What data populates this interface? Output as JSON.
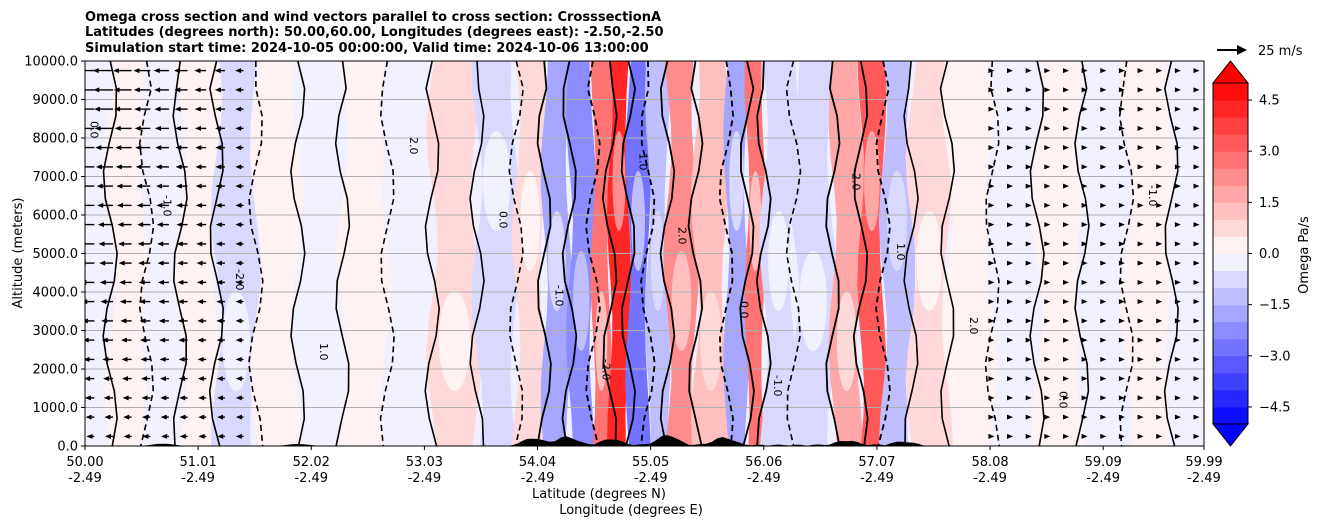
{
  "chart_data": {
    "type": "contourf_crosssection",
    "title_lines": [
      "Omega cross section and wind vectors parallel to cross section: CrosssectionA",
      "Latitudes (degrees north): 50.00,60.00, Longitudes (degrees east): -2.50,-2.50",
      "Simulation start time: 2024-10-05 00:00:00, Valid time: 2024-10-06 13:00:00"
    ],
    "ylabel": "Altitude (meters)",
    "xlabel_lines": [
      "Latitude (degrees N)",
      "Longitude (degrees E)"
    ],
    "ylim": [
      0,
      10000
    ],
    "y_ticks": [
      0,
      1000,
      2000,
      3000,
      4000,
      5000,
      6000,
      7000,
      8000,
      9000,
      10000
    ],
    "y_tick_labels": [
      "0.0",
      "1000.0",
      "2000.0",
      "3000.0",
      "4000.0",
      "5000.0",
      "6000.0",
      "7000.0",
      "8000.0",
      "9000.0",
      "10000.0"
    ],
    "x_ticks": [
      {
        "lat": "50.00",
        "lon": "-2.49"
      },
      {
        "lat": "51.01",
        "lon": "-2.49"
      },
      {
        "lat": "52.02",
        "lon": "-2.49"
      },
      {
        "lat": "53.03",
        "lon": "-2.49"
      },
      {
        "lat": "54.04",
        "lon": "-2.49"
      },
      {
        "lat": "55.05",
        "lon": "-2.49"
      },
      {
        "lat": "56.06",
        "lon": "-2.49"
      },
      {
        "lat": "57.07",
        "lon": "-2.49"
      },
      {
        "lat": "58.08",
        "lon": "-2.49"
      },
      {
        "lat": "59.09",
        "lon": "-2.49"
      },
      {
        "lat": "59.99",
        "lon": "-2.49"
      }
    ],
    "colorbar": {
      "label": "Omega Pa/s",
      "range": [
        -5.0,
        5.0
      ],
      "ticks": [
        4.5,
        3.0,
        1.5,
        0.0,
        -1.5,
        -3.0,
        -4.5
      ],
      "tick_labels": [
        "4.5",
        "3.0",
        "1.5",
        "0.0",
        "−1.5",
        "−3.0",
        "−4.5"
      ],
      "levels": 20,
      "extend": "both",
      "low_color": "#0000ff",
      "high_color": "#ff0000"
    },
    "quiver_key": {
      "label": "25 m/s",
      "speed": 25
    },
    "contour_labels": [
      "0.0",
      "1.0",
      "-1.0",
      "2.0",
      "-2.0"
    ],
    "omega_bands": [
      {
        "lat": 50.05,
        "value": -0.4
      },
      {
        "lat": 50.4,
        "value": 0.4
      },
      {
        "lat": 50.7,
        "value": -0.5
      },
      {
        "lat": 51.0,
        "value": 0.3
      },
      {
        "lat": 51.35,
        "value": -0.6
      },
      {
        "lat": 51.7,
        "value": 0.4
      },
      {
        "lat": 52.1,
        "value": -0.3
      },
      {
        "lat": 52.5,
        "value": 0.3
      },
      {
        "lat": 52.9,
        "value": -0.4
      },
      {
        "lat": 53.3,
        "value": 0.5
      },
      {
        "lat": 53.7,
        "value": -0.6
      },
      {
        "lat": 54.0,
        "value": 0.8
      },
      {
        "lat": 54.2,
        "value": -1.6
      },
      {
        "lat": 54.45,
        "value": -2.5
      },
      {
        "lat": 54.62,
        "value": 2.5
      },
      {
        "lat": 54.75,
        "value": 4.0
      },
      {
        "lat": 54.95,
        "value": -2.8
      },
      {
        "lat": 55.1,
        "value": -1.5
      },
      {
        "lat": 55.3,
        "value": 2.2
      },
      {
        "lat": 55.6,
        "value": 1.0
      },
      {
        "lat": 55.85,
        "value": -2.0
      },
      {
        "lat": 55.97,
        "value": 2.6
      },
      {
        "lat": 56.15,
        "value": -1.0
      },
      {
        "lat": 56.5,
        "value": -0.8
      },
      {
        "lat": 56.85,
        "value": 1.8
      },
      {
        "lat": 57.0,
        "value": 3.2
      },
      {
        "lat": 57.25,
        "value": -1.2
      },
      {
        "lat": 57.5,
        "value": 0.6
      },
      {
        "lat": 57.9,
        "value": 0.4
      },
      {
        "lat": 58.3,
        "value": -0.5
      },
      {
        "lat": 58.7,
        "value": 0.4
      },
      {
        "lat": 59.1,
        "value": -0.3
      },
      {
        "lat": 59.5,
        "value": 0.3
      },
      {
        "lat": 59.9,
        "value": -0.2
      }
    ],
    "terrain_peaks": [
      {
        "lat": 50.7,
        "height": 60
      },
      {
        "lat": 51.9,
        "height": 50
      },
      {
        "lat": 54.0,
        "height": 180
      },
      {
        "lat": 54.3,
        "height": 220
      },
      {
        "lat": 54.7,
        "height": 160
      },
      {
        "lat": 55.2,
        "height": 260
      },
      {
        "lat": 55.7,
        "height": 200
      },
      {
        "lat": 56.8,
        "height": 120
      },
      {
        "lat": 57.3,
        "height": 90
      }
    ],
    "wind_u_ms": {
      "upper_left": -22,
      "lower_left": -5,
      "right": 2
    }
  }
}
